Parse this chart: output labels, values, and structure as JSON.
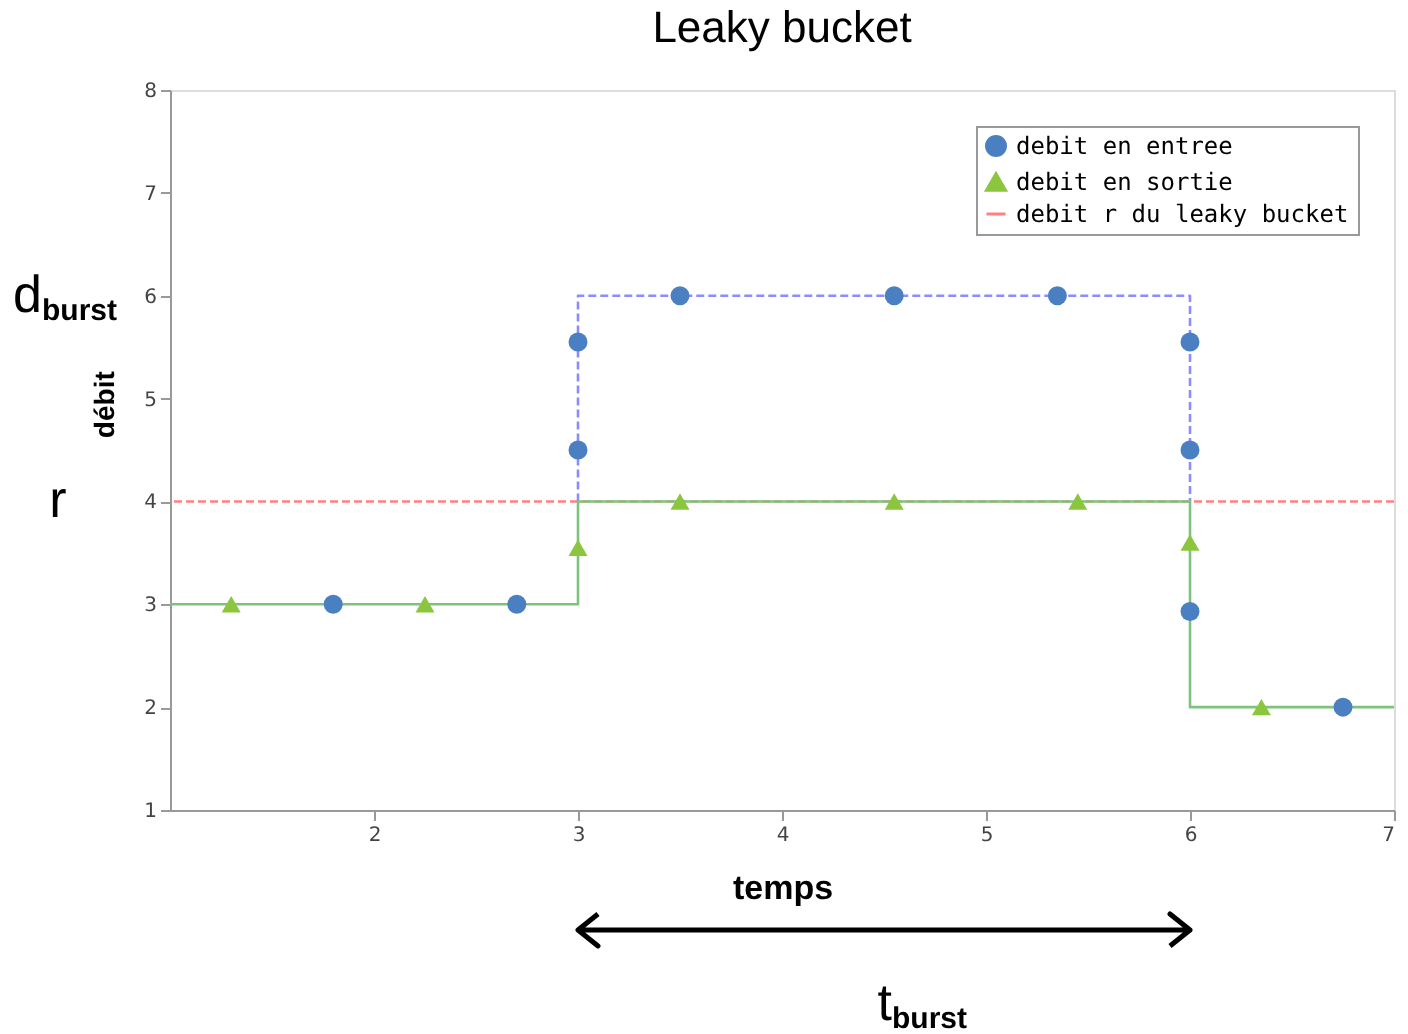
{
  "chart_data": {
    "type": "line",
    "title": "Leaky bucket",
    "xlabel": "temps",
    "ylabel": "débit",
    "xlim": [
      1,
      7
    ],
    "xticks": [
      2,
      3,
      4,
      5,
      6,
      7
    ],
    "ylim": [
      1,
      8
    ],
    "yticks": [
      1,
      2,
      3,
      4,
      5,
      6,
      7,
      8
    ],
    "grid": false,
    "legend": "top right",
    "series": [
      {
        "color": "#8c8cff",
        "line_style": "dashed",
        "marker": "none",
        "x": [
          3,
          3,
          6,
          6
        ],
        "values": [
          4,
          6,
          6,
          4
        ]
      },
      {
        "color": "#7cc47c",
        "line_style": "solid",
        "marker": "none",
        "x": [
          1,
          3,
          3,
          6,
          6,
          7
        ],
        "values": [
          3,
          3,
          4,
          4,
          2,
          2
        ]
      },
      {
        "type": "scatter",
        "name": "debit en entree",
        "color": "#4a7fc1",
        "marker": "circle",
        "x": [
          1.8,
          2.7,
          3,
          3,
          3.5,
          4.55,
          5.35,
          6,
          6,
          6,
          6.75
        ],
        "values": [
          3,
          3,
          5.55,
          4.5,
          6,
          6,
          6,
          5.55,
          4.5,
          2.93,
          2
        ]
      },
      {
        "type": "scatter",
        "name": "debit en sortie",
        "color": "#8cc63f",
        "marker": "triangle",
        "x": [
          1.3,
          2.25,
          3,
          3.5,
          4.55,
          5.45,
          6,
          6.35
        ],
        "values": [
          3,
          3,
          3.55,
          4,
          4,
          4,
          3.6,
          2
        ]
      }
    ],
    "ref_lines": [
      {
        "axis": "y",
        "value": 4,
        "label": "debit r du leaky bucket",
        "color": "#ff8080",
        "line_style": "dashed"
      }
    ],
    "annotations": [
      "d$_{burst}$",
      "r",
      "t$_{burst}$"
    ]
  }
}
